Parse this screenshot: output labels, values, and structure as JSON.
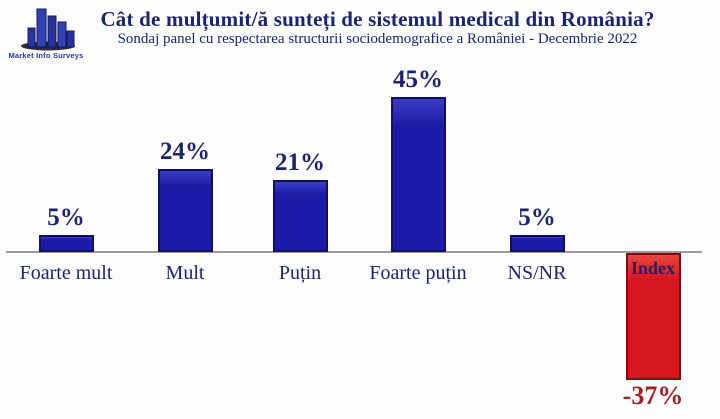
{
  "logo": {
    "name": "Market Info Surveys",
    "icon": "bar-chart-buildings-icon"
  },
  "header": {
    "title": "Cât de mulțumit/ă sunteți de sistemul medical din România?",
    "subtitle": "Sondaj panel cu respectarea structurii sociodemografice a României - Decembrie 2022"
  },
  "colors": {
    "bar_blue": "#1c1ba7",
    "bar_blue_border": "#10105e",
    "bar_red": "#d6181e",
    "bar_red_border": "#7e0c10",
    "navy_text": "#1b2470",
    "negative_value_text": "#a32024",
    "axis_line": "#9c9c9c"
  },
  "chart_data": {
    "type": "bar",
    "title": "Cât de mulțumit/ă sunteți de sistemul medical din România?",
    "subtitle": "Sondaj panel cu respectarea structurii sociodemografice a României - Decembrie 2022",
    "categories": [
      "Foarte mult",
      "Mult",
      "Puțin",
      "Foarte puțin",
      "NS/NR",
      "Index"
    ],
    "values": [
      5,
      24,
      21,
      45,
      5,
      -37
    ],
    "value_labels": [
      "5%",
      "24%",
      "21%",
      "45%",
      "5%",
      "-37%"
    ],
    "bar_colors": [
      "#1c1ba7",
      "#1c1ba7",
      "#1c1ba7",
      "#1c1ba7",
      "#1c1ba7",
      "#d6181e"
    ],
    "xlabel": "",
    "ylabel": "",
    "ylim": [
      -40,
      50
    ],
    "baseline_value": 0,
    "grid": false,
    "legend_position": "none"
  }
}
